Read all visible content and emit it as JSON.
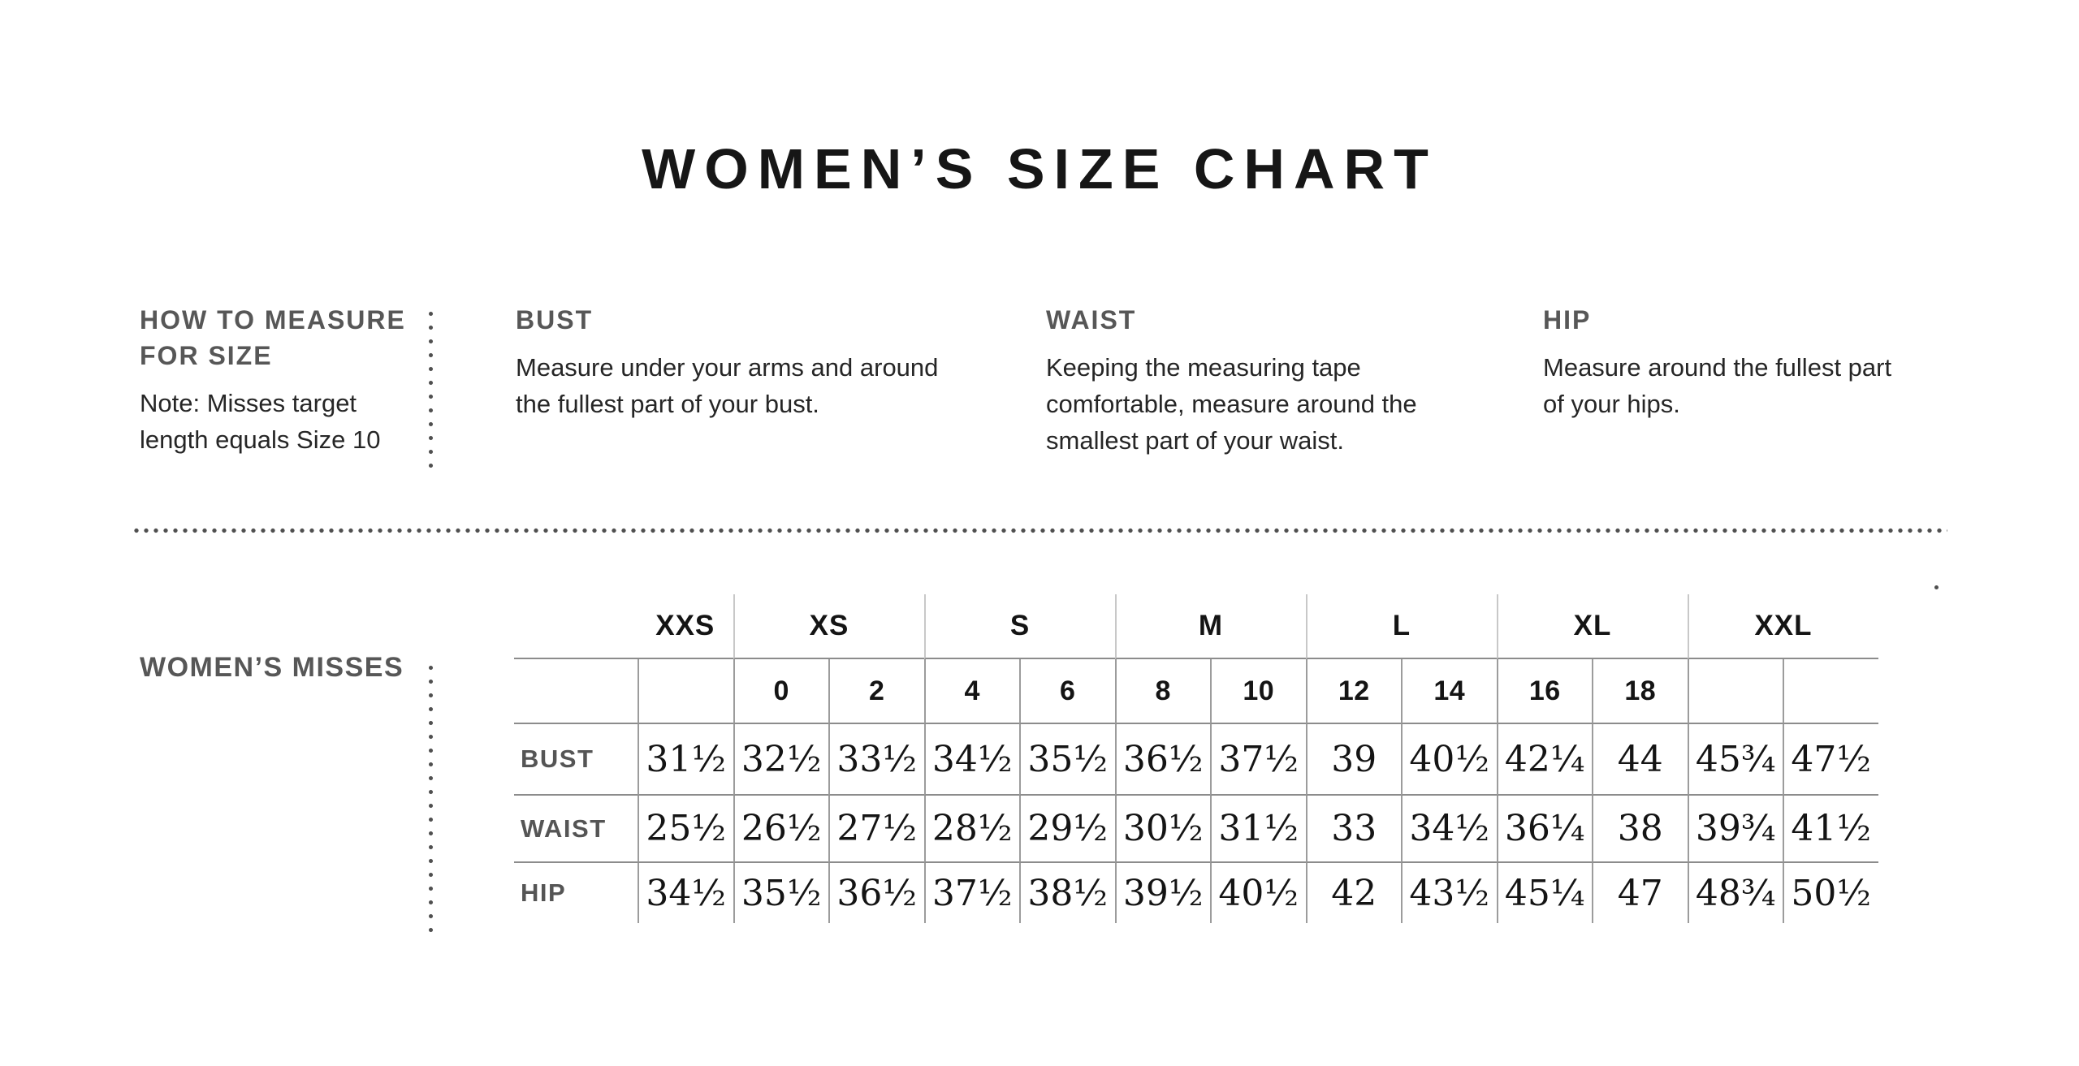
{
  "title": "WOMEN’S SIZE CHART",
  "how_to_measure": {
    "heading": "HOW TO MEASURE\nFOR SIZE",
    "note": "Note: Misses target\nlength equals Size 10"
  },
  "measure_guides": [
    {
      "label": "BUST",
      "text": "Measure under your arms and around\nthe fullest part of your bust."
    },
    {
      "label": "WAIST",
      "text": "Keeping the measuring tape\ncomfortable, measure around the\nsmallest part of your waist."
    },
    {
      "label": "HIP",
      "text": "Measure around the fullest part\nof your hips."
    }
  ],
  "size_table": {
    "section_label": "WOMEN’S MISSES",
    "size_groups": [
      {
        "label": "XXS",
        "span": 1
      },
      {
        "label": "XS",
        "span": 2
      },
      {
        "label": "S",
        "span": 2
      },
      {
        "label": "M",
        "span": 2
      },
      {
        "label": "L",
        "span": 2
      },
      {
        "label": "XL",
        "span": 2
      },
      {
        "label": "XXL",
        "span": 2
      }
    ],
    "numeric_sizes": [
      "",
      "0",
      "2",
      "4",
      "6",
      "8",
      "10",
      "12",
      "14",
      "16",
      "18",
      "",
      ""
    ],
    "rows": [
      {
        "label": "BUST",
        "values": [
          "31½",
          "32½",
          "33½",
          "34½",
          "35½",
          "36½",
          "37½",
          "39",
          "40½",
          "42¼",
          "44",
          "45¾",
          "47½"
        ]
      },
      {
        "label": "WAIST",
        "values": [
          "25½",
          "26½",
          "27½",
          "28½",
          "29½",
          "30½",
          "31½",
          "33",
          "34½",
          "36¼",
          "38",
          "39¾",
          "41½"
        ]
      },
      {
        "label": "HIP",
        "values": [
          "34½",
          "35½",
          "36½",
          "37½",
          "38½",
          "39½",
          "40½",
          "42",
          "43½",
          "45¼",
          "47",
          "48¾",
          "50½"
        ]
      }
    ]
  },
  "colors": {
    "background": "#ffffff",
    "title_ink": "#161616",
    "heading_gray": "#575757",
    "body_ink": "#262626",
    "table_hline": "#8c8c8c",
    "table_vline": "#9c9c9c",
    "table_vline_light": "#c8c8c8",
    "dotted_divider": "#4f4f4f"
  }
}
